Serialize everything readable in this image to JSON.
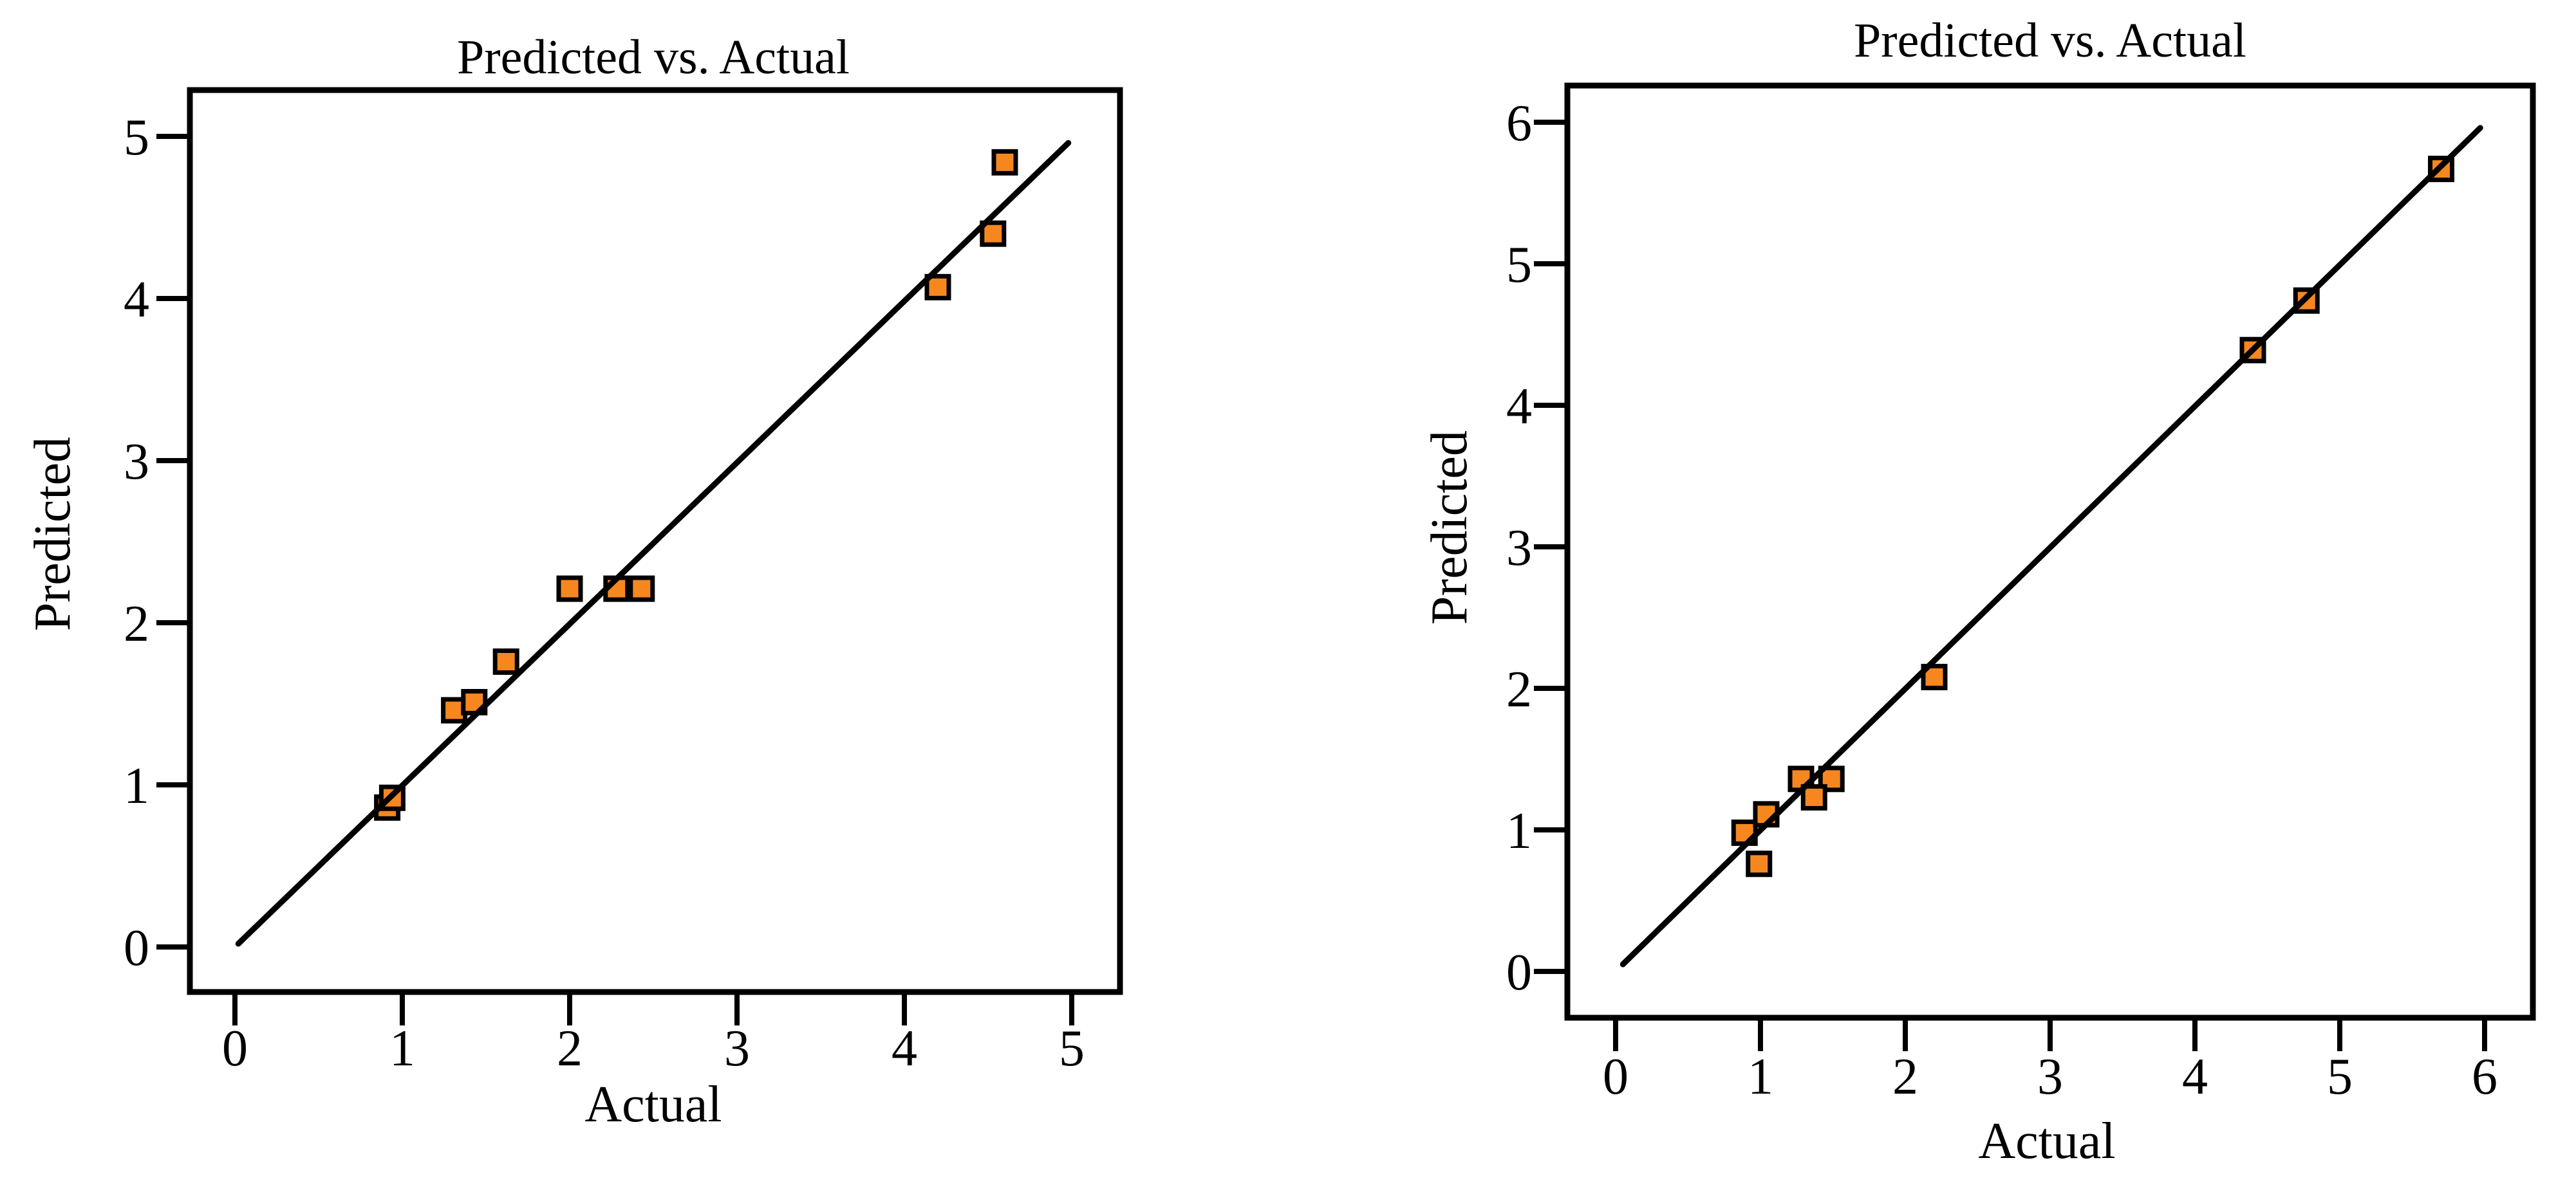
{
  "page": {
    "background": "#FFFFFF"
  },
  "colors": {
    "marker_fill": "#F6871F",
    "marker_stroke": "#000000",
    "identity_line": "#000000",
    "frame": "#000000",
    "text": "#000000"
  },
  "chart_data": [
    {
      "type": "scatter",
      "title": "Predicted vs. Actual",
      "xlabel": "Actual",
      "ylabel": "Predicted",
      "xlim": [
        0,
        5
      ],
      "ylim": [
        0,
        5
      ],
      "xticks": [
        "0",
        "1",
        "2",
        "3",
        "4",
        "5"
      ],
      "yticks": [
        "0",
        "1",
        "2",
        "3",
        "4",
        "5"
      ],
      "grid": false,
      "legend": "none",
      "marker_shape": "square",
      "identity_line": {
        "x1": 0.02,
        "y1": 0.02,
        "x2": 4.98,
        "y2": 4.96
      },
      "points": [
        [
          0.91,
          0.86
        ],
        [
          0.94,
          0.92
        ],
        [
          1.31,
          1.46
        ],
        [
          1.43,
          1.51
        ],
        [
          1.62,
          1.76
        ],
        [
          2.0,
          2.21
        ],
        [
          2.28,
          2.21
        ],
        [
          2.43,
          2.21
        ],
        [
          4.2,
          4.07
        ],
        [
          4.53,
          4.4
        ],
        [
          4.6,
          4.84
        ]
      ]
    },
    {
      "type": "scatter",
      "title": "Predicted vs. Actual",
      "xlabel": "Actual",
      "ylabel": "Predicted",
      "xlim": [
        0,
        6
      ],
      "ylim": [
        0,
        6
      ],
      "xticks": [
        "0",
        "1",
        "2",
        "3",
        "4",
        "5",
        "6"
      ],
      "yticks": [
        "0",
        "1",
        "2",
        "3",
        "4",
        "5",
        "6"
      ],
      "grid": false,
      "legend": "none",
      "marker_shape": "square",
      "identity_line": {
        "x1": 0.05,
        "y1": 0.05,
        "x2": 5.97,
        "y2": 5.96
      },
      "points": [
        [
          0.89,
          0.98
        ],
        [
          1.04,
          1.11
        ],
        [
          0.99,
          0.76
        ],
        [
          1.28,
          1.36
        ],
        [
          1.49,
          1.36
        ],
        [
          1.37,
          1.23
        ],
        [
          2.2,
          2.08
        ],
        [
          4.4,
          4.39
        ],
        [
          4.77,
          4.74
        ],
        [
          5.7,
          5.67
        ]
      ]
    }
  ]
}
